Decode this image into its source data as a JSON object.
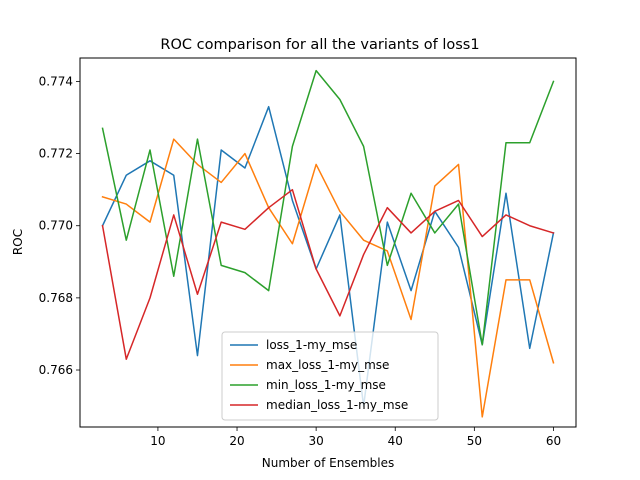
{
  "chart_data": {
    "type": "line",
    "title": "ROC comparison for all the variants of loss1",
    "xlabel": "Number of Ensembles",
    "ylabel": "ROC",
    "xlim": [
      0.15,
      62.85
    ],
    "ylim": [
      0.76442,
      0.77465
    ],
    "xticks": [
      10,
      20,
      30,
      40,
      50,
      60
    ],
    "xtick_labels": [
      "10",
      "20",
      "30",
      "40",
      "50",
      "60"
    ],
    "yticks": [
      0.766,
      0.768,
      0.77,
      0.772,
      0.774
    ],
    "ytick_labels": [
      "0.766",
      "0.768",
      "0.770",
      "0.772",
      "0.774"
    ],
    "grid": false,
    "legend_position": "lower center",
    "x": [
      3,
      6,
      9,
      12,
      15,
      18,
      21,
      24,
      27,
      30,
      33,
      36,
      39,
      42,
      45,
      48,
      51,
      54,
      57,
      60
    ],
    "series": [
      {
        "name": "loss_1-my_mse",
        "color": "#1f77b4",
        "values": [
          0.77,
          0.7714,
          0.7718,
          0.7714,
          0.7664,
          0.7721,
          0.7716,
          0.7733,
          0.7707,
          0.7688,
          0.7703,
          0.765,
          0.7701,
          0.7682,
          0.7704,
          0.7694,
          0.7667,
          0.7709,
          0.7666,
          0.7698
        ]
      },
      {
        "name": "max_loss_1-my_mse",
        "color": "#ff7f0e",
        "values": [
          0.7708,
          0.7706,
          0.7701,
          0.7724,
          0.7717,
          0.7712,
          0.772,
          0.7705,
          0.7695,
          0.7717,
          0.7704,
          0.7696,
          0.7693,
          0.7674,
          0.7711,
          0.7717,
          0.7647,
          0.7685,
          0.7685,
          0.7662
        ]
      },
      {
        "name": "min_loss_1-my_mse",
        "color": "#2ca02c",
        "values": [
          0.7727,
          0.7696,
          0.7721,
          0.7686,
          0.7724,
          0.7689,
          0.7687,
          0.7682,
          0.7722,
          0.7743,
          0.7735,
          0.7722,
          0.7689,
          0.7709,
          0.7698,
          0.7706,
          0.7667,
          0.7723,
          0.7723,
          0.774
        ]
      },
      {
        "name": "median_loss_1-my_mse",
        "color": "#d62728",
        "values": [
          0.77,
          0.7663,
          0.768,
          0.7703,
          0.7681,
          0.7701,
          0.7699,
          0.7705,
          0.771,
          0.7688,
          0.7675,
          0.7692,
          0.7705,
          0.7698,
          0.7704,
          0.7707,
          0.7697,
          0.7703,
          0.77,
          0.7698
        ]
      }
    ]
  }
}
